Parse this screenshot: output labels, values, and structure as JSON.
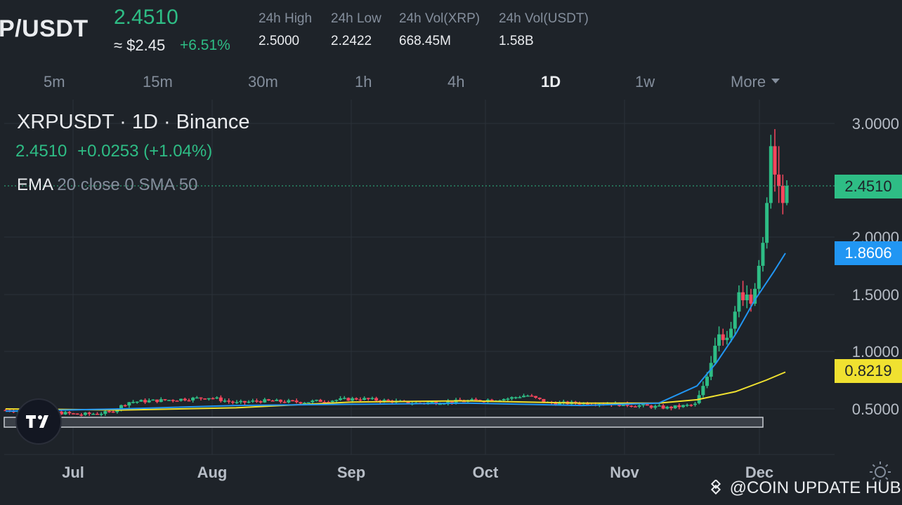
{
  "header": {
    "pair": "P/USDT",
    "last_price": "2.4510",
    "approx_usd": "≈ $2.45",
    "change_pct": "+6.51%",
    "stats": [
      {
        "label": "24h High",
        "value": "2.5000"
      },
      {
        "label": "24h Low",
        "value": "2.2422"
      },
      {
        "label": "24h Vol(XRP)",
        "value": "668.45M"
      },
      {
        "label": "24h Vol(USDT)",
        "value": "1.58B"
      }
    ]
  },
  "timeframes": [
    "5m",
    "15m",
    "30m",
    "1h",
    "4h",
    "1D",
    "1w"
  ],
  "active_timeframe": "1D",
  "more_label": "More",
  "legend": {
    "title": "XRPUSDT · 1D · Binance",
    "price": "2.4510",
    "change": "+0.0253 (+1.04%)",
    "indicator_prefix": "EMA",
    "indicator_rest": "20 close 0 SMA 50"
  },
  "price_axis": [
    "3.0000",
    "2.0000",
    "1.5000",
    "1.0000",
    "0.5000"
  ],
  "price_tags": {
    "last": "2.4510",
    "ema": "1.8606",
    "sma": "0.8219"
  },
  "time_axis": [
    "Jul",
    "Aug",
    "Sep",
    "Oct",
    "Nov",
    "Dec"
  ],
  "watermark": "@COIN UPDATE HUB",
  "colors": {
    "background": "#1e2329",
    "up": "#2ebd85",
    "down": "#f6465d",
    "ema_line": "#2196f3",
    "sma_line": "#f0e130",
    "grid": "#2b3139"
  },
  "icons": [
    "binance-logo-icon",
    "tradingview-logo-icon",
    "settings-sun-icon",
    "dropdown-caret-icon"
  ],
  "chart_data": {
    "type": "candlestick",
    "symbol": "XRPUSDT",
    "interval": "1D",
    "x_ticks": [
      "Jul",
      "Aug",
      "Sep",
      "Oct",
      "Nov",
      "Dec"
    ],
    "y_ticks": [
      0.5,
      1.0,
      1.5,
      2.0,
      3.0
    ],
    "ylim": [
      0.2,
      3.2
    ],
    "last_price": 2.451,
    "ema_last": 1.8606,
    "sma_last": 0.8219,
    "series": [
      {
        "name": "EMA",
        "approx_path": [
          [
            0,
            0.48
          ],
          [
            30,
            0.5
          ],
          [
            60,
            0.53
          ],
          [
            90,
            0.54
          ],
          [
            120,
            0.55
          ],
          [
            150,
            0.53
          ],
          [
            170,
            0.55
          ],
          [
            180,
            0.7
          ],
          [
            185,
            0.9
          ],
          [
            190,
            1.15
          ],
          [
            195,
            1.45
          ],
          [
            200,
            1.7
          ],
          [
            203,
            1.86
          ]
        ]
      },
      {
        "name": "SMA",
        "approx_path": [
          [
            0,
            0.5
          ],
          [
            30,
            0.49
          ],
          [
            60,
            0.51
          ],
          [
            90,
            0.56
          ],
          [
            120,
            0.57
          ],
          [
            150,
            0.55
          ],
          [
            170,
            0.55
          ],
          [
            180,
            0.58
          ],
          [
            190,
            0.65
          ],
          [
            198,
            0.75
          ],
          [
            203,
            0.82
          ]
        ]
      }
    ]
  }
}
